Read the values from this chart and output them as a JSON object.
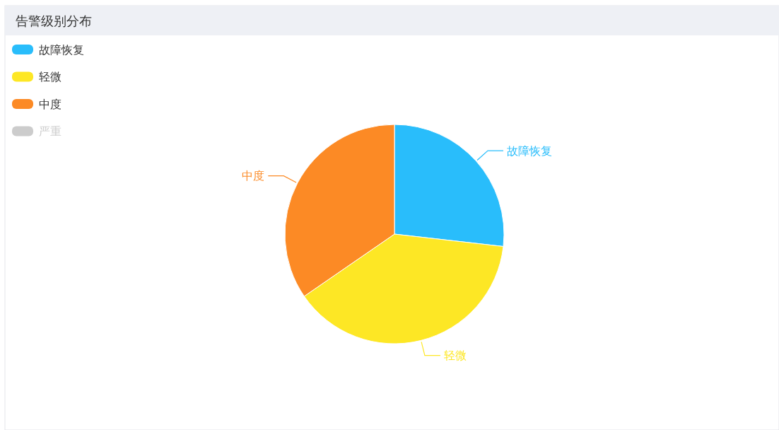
{
  "chart_data": {
    "type": "pie",
    "title": "告警级别分布",
    "categories": [
      "故障恢复",
      "轻微",
      "中度",
      "严重"
    ],
    "values": [
      26.8,
      38.6,
      34.6,
      null
    ],
    "colors": [
      "#29bdfb",
      "#fde725",
      "#fc8a25",
      "#cccccc"
    ],
    "legend": "top left"
  }
}
